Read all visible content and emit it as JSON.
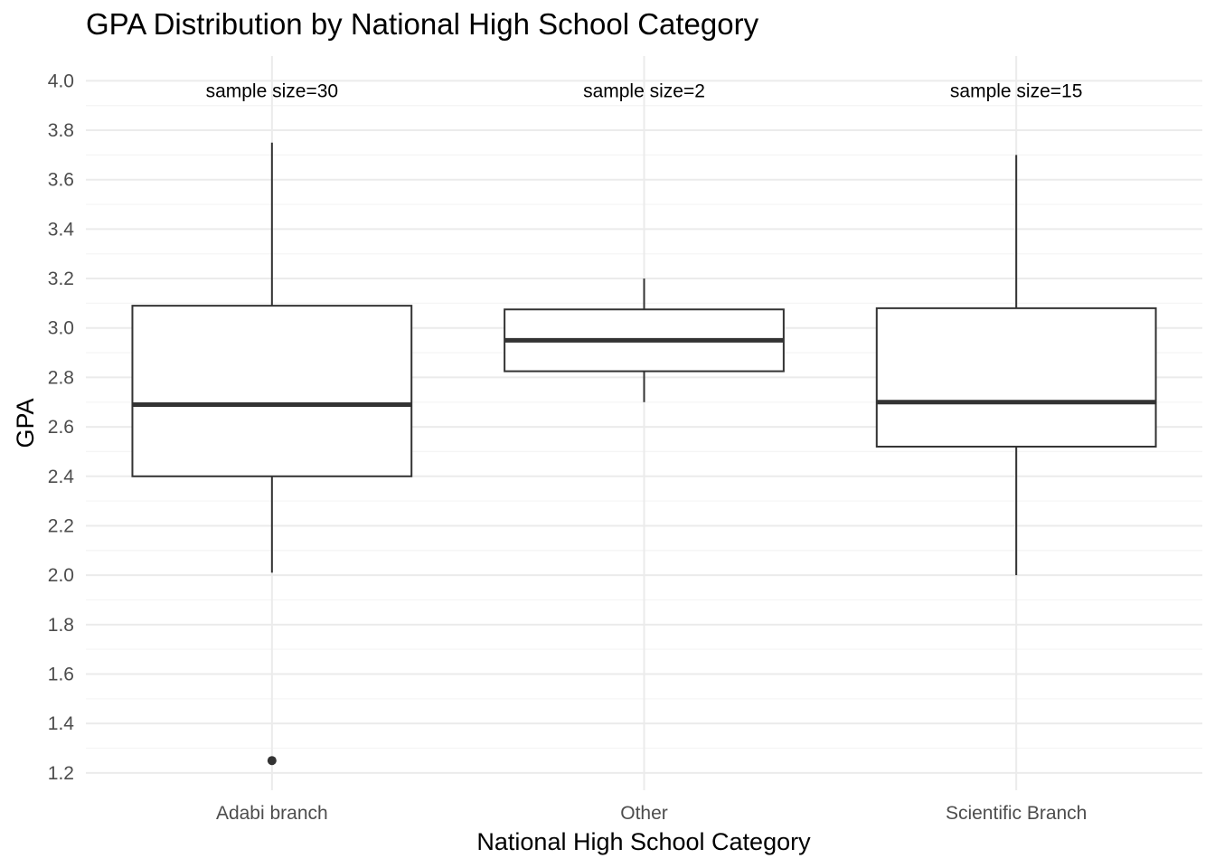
{
  "chart_data": {
    "type": "box",
    "title": "GPA Distribution by National High School Category",
    "xlabel": "National High School Category",
    "ylabel": "GPA",
    "ylim": [
      1.13,
      4.1
    ],
    "yticks": [
      1.2,
      1.4,
      1.6,
      1.8,
      2.0,
      2.2,
      2.4,
      2.6,
      2.8,
      3.0,
      3.2,
      3.4,
      3.6,
      3.8,
      4.0
    ],
    "ytick_labels": [
      "1.2",
      "1.4",
      "1.6",
      "1.8",
      "2.0",
      "2.2",
      "2.4",
      "2.6",
      "2.8",
      "3.0",
      "3.2",
      "3.4",
      "3.6",
      "3.8",
      "4.0"
    ],
    "categories": [
      "Adabi branch",
      "Other",
      "Scientific Branch"
    ],
    "boxes": [
      {
        "category": "Adabi branch",
        "whisker_low": 2.01,
        "q1": 2.4,
        "median": 2.69,
        "q3": 3.09,
        "whisker_high": 3.75,
        "outliers": [
          1.25
        ]
      },
      {
        "category": "Other",
        "whisker_low": 2.7,
        "q1": 2.825,
        "median": 2.95,
        "q3": 3.075,
        "whisker_high": 3.2,
        "outliers": []
      },
      {
        "category": "Scientific Branch",
        "whisker_low": 2.0,
        "q1": 2.52,
        "median": 2.7,
        "q3": 3.08,
        "whisker_high": 3.7,
        "outliers": []
      }
    ],
    "annotations": [
      {
        "category": "Adabi branch",
        "text": "sample size=30",
        "y": 3.96
      },
      {
        "category": "Other",
        "text": "sample size=2",
        "y": 3.96
      },
      {
        "category": "Scientific Branch",
        "text": "sample size=15",
        "y": 3.96
      }
    ],
    "grid": true,
    "legend": "none",
    "colors": {
      "box_fill": "#ffffff",
      "box_line": "#333333",
      "grid_major": "#ebebeb",
      "grid_minor": "#f5f5f5",
      "tick_text": "#4d4d4d",
      "title_text": "#000000"
    }
  }
}
